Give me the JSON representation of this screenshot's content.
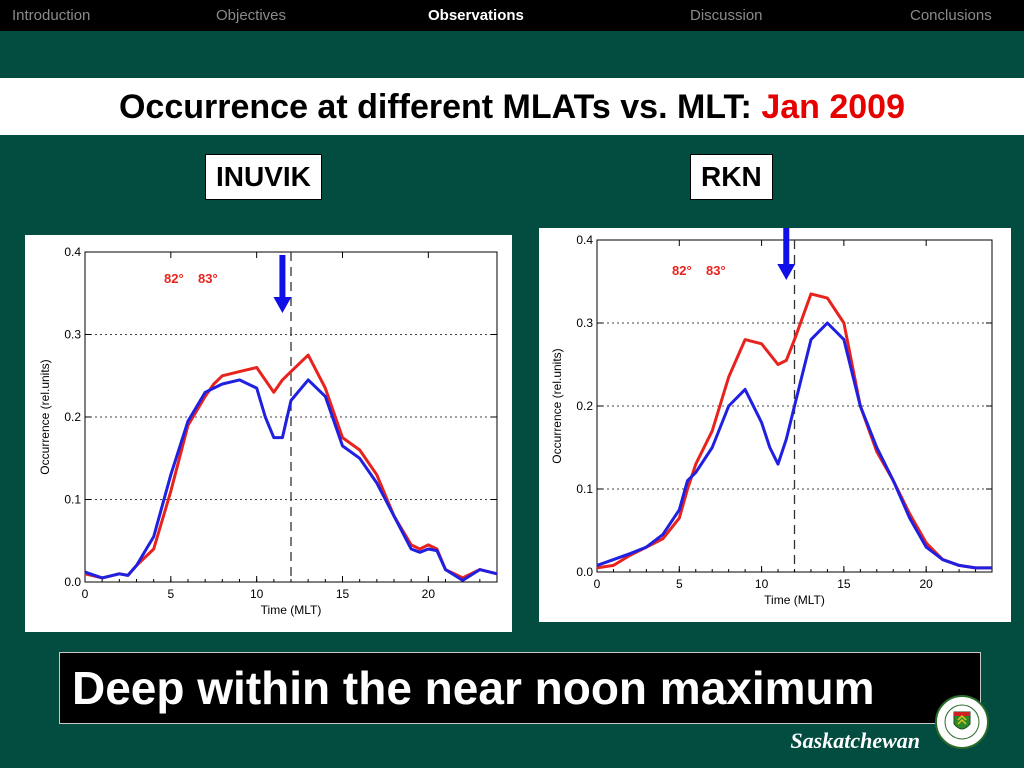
{
  "nav": {
    "items": [
      {
        "label": "Introduction",
        "active": false
      },
      {
        "label": "Objectives",
        "active": false
      },
      {
        "label": "Observations",
        "active": true
      },
      {
        "label": "Discussion",
        "active": false
      },
      {
        "label": "Conclusions",
        "active": false
      }
    ]
  },
  "slide": {
    "title_main": "Occurrence at different MLATs vs. MLT: ",
    "title_highlight": "Jan 2009",
    "caption": "Deep within the near noon maximum",
    "footer": "Saskatchewan",
    "colors": {
      "background": "#024d40",
      "highlight": "#e60000",
      "series_82": "#e8231e",
      "series_83": "#2020e0",
      "arrow": "#1010e6"
    }
  },
  "stations": {
    "left": "INUVIK",
    "right": "RKN"
  },
  "chart_data": [
    {
      "type": "line",
      "station": "INUVIK",
      "xlabel": "Time (MLT)",
      "ylabel": "Occurrence (rel.units)",
      "xlim": [
        0,
        24
      ],
      "ylim": [
        0,
        0.4
      ],
      "xticks": [
        "0",
        "5",
        "10",
        "15",
        "20"
      ],
      "yticks": [
        "0.0",
        "0.1",
        "0.2",
        "0.3",
        "0.4"
      ],
      "grid": "dotted horizontal at 0.1, 0.2, 0.3",
      "legend_labels": [
        "82°",
        "83°"
      ],
      "marker_line_x": 12,
      "arrow_x": 11.5,
      "series": [
        {
          "name": "82°",
          "color": "#e8231e",
          "x": [
            0,
            1,
            2,
            2.5,
            3,
            4,
            5,
            6,
            7,
            7.5,
            8,
            9,
            10,
            11,
            11.5,
            12,
            13,
            14,
            15,
            16,
            17,
            18,
            19,
            19.5,
            20,
            20.5,
            21,
            22,
            23,
            24
          ],
          "y": [
            0.01,
            0.005,
            0.01,
            0.008,
            0.02,
            0.04,
            0.11,
            0.19,
            0.225,
            0.24,
            0.25,
            0.255,
            0.26,
            0.23,
            0.245,
            0.255,
            0.275,
            0.235,
            0.175,
            0.16,
            0.13,
            0.08,
            0.045,
            0.04,
            0.045,
            0.04,
            0.015,
            0.005,
            0.015,
            0.01
          ]
        },
        {
          "name": "83°",
          "color": "#2020e0",
          "x": [
            0,
            1,
            2,
            2.5,
            3,
            4,
            5,
            6,
            7,
            7.5,
            8,
            9,
            10,
            10.5,
            11,
            11.5,
            12,
            13,
            14,
            15,
            16,
            17,
            18,
            19,
            19.5,
            20,
            20.5,
            21,
            22,
            23,
            24
          ],
          "y": [
            0.012,
            0.005,
            0.01,
            0.008,
            0.02,
            0.055,
            0.13,
            0.195,
            0.23,
            0.235,
            0.24,
            0.245,
            0.235,
            0.2,
            0.175,
            0.175,
            0.22,
            0.245,
            0.225,
            0.165,
            0.15,
            0.12,
            0.08,
            0.04,
            0.036,
            0.04,
            0.038,
            0.015,
            0.002,
            0.015,
            0.01
          ]
        }
      ]
    },
    {
      "type": "line",
      "station": "RKN",
      "xlabel": "Time (MLT)",
      "ylabel": "Occurrence (rel.units)",
      "xlim": [
        0,
        24
      ],
      "ylim": [
        0,
        0.4
      ],
      "xticks": [
        "0",
        "5",
        "10",
        "15",
        "20"
      ],
      "yticks": [
        "0.0",
        "0.1",
        "0.2",
        "0.3",
        "0.4"
      ],
      "grid": "dotted horizontal at 0.1, 0.2, 0.3",
      "legend_labels": [
        "82°",
        "83°"
      ],
      "marker_line_x": 12,
      "arrow_x": 11.5,
      "series": [
        {
          "name": "82°",
          "color": "#e8231e",
          "x": [
            0,
            1,
            2,
            3,
            4,
            5,
            5.5,
            6,
            7,
            8,
            9,
            10,
            11,
            11.5,
            12,
            13,
            14,
            15,
            16,
            17,
            18,
            19,
            20,
            21,
            22,
            23,
            24
          ],
          "y": [
            0.005,
            0.008,
            0.02,
            0.03,
            0.04,
            0.065,
            0.1,
            0.13,
            0.17,
            0.235,
            0.28,
            0.275,
            0.25,
            0.255,
            0.28,
            0.335,
            0.33,
            0.3,
            0.2,
            0.145,
            0.11,
            0.07,
            0.035,
            0.015,
            0.008,
            0.005,
            0.005
          ]
        },
        {
          "name": "83°",
          "color": "#2020e0",
          "x": [
            0,
            1,
            2,
            3,
            4,
            5,
            5.5,
            6,
            7,
            8,
            9,
            10,
            10.5,
            11,
            11.5,
            12,
            13,
            14,
            15,
            16,
            17,
            18,
            19,
            20,
            21,
            22,
            23,
            24
          ],
          "y": [
            0.008,
            0.015,
            0.022,
            0.03,
            0.045,
            0.075,
            0.11,
            0.12,
            0.15,
            0.2,
            0.22,
            0.18,
            0.15,
            0.13,
            0.16,
            0.2,
            0.28,
            0.3,
            0.28,
            0.2,
            0.15,
            0.11,
            0.065,
            0.03,
            0.015,
            0.008,
            0.005,
            0.005
          ]
        }
      ]
    }
  ]
}
